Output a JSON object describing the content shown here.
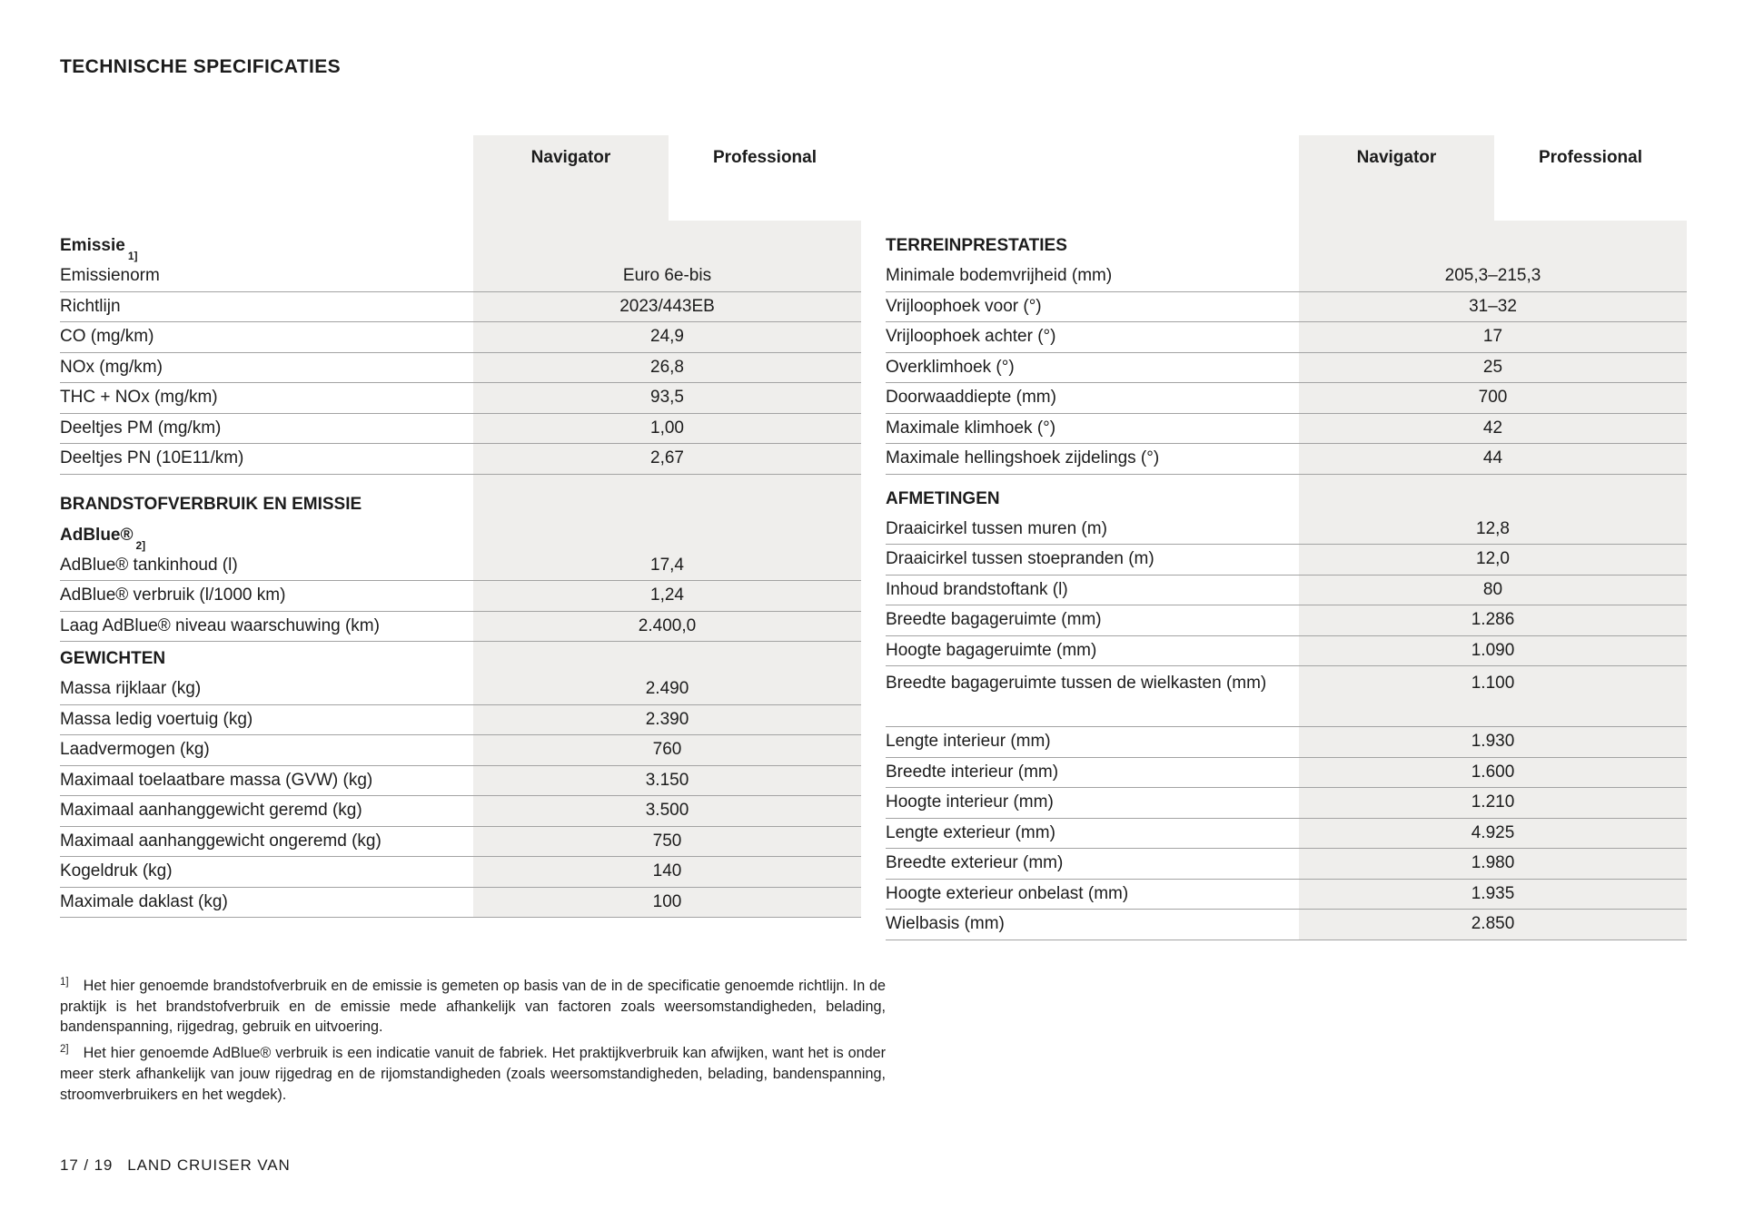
{
  "page": {
    "title": "TECHNISCHE SPECIFICATIES",
    "page_indicator": "17 / 19",
    "model_name": "LAND CRUISER VAN"
  },
  "columns": {
    "navigator": "Navigator",
    "professional": "Professional"
  },
  "colors": {
    "band": "#efeeec",
    "rule": "#a3a3a3",
    "text": "#1c1c1c",
    "background": "#ffffff"
  },
  "left_table": {
    "sections": [
      {
        "heading": "Emissie",
        "heading_sup": "1]",
        "rows": [
          {
            "label": "Emissienorm",
            "value": "Euro 6e-bis"
          },
          {
            "label": "Richtlijn",
            "value": "2023/443EB"
          },
          {
            "label": "CO (mg/km)",
            "value": "24,9"
          },
          {
            "label": "NOx (mg/km)",
            "value": "26,8"
          },
          {
            "label": "THC + NOx (mg/km)",
            "value": "93,5"
          },
          {
            "label": "Deeltjes PM (mg/km)",
            "value": "1,00"
          },
          {
            "label": "Deeltjes PN (10E11/km)",
            "value": "2,67"
          }
        ]
      },
      {
        "heading": "BRANDSTOFVERBRUIK EN EMISSIE",
        "rows": []
      },
      {
        "heading": "AdBlue®",
        "heading_sup": "2]",
        "rows": [
          {
            "label": "AdBlue® tankinhoud (l)",
            "value": "17,4"
          },
          {
            "label": "AdBlue® verbruik (l/1000 km)",
            "value": "1,24"
          },
          {
            "label": "Laag AdBlue® niveau waarschuwing (km)",
            "value": "2.400,0"
          }
        ]
      },
      {
        "heading": "GEWICHTEN",
        "rows": [
          {
            "label": "Massa rijklaar (kg)",
            "value": "2.490"
          },
          {
            "label": "Massa ledig voertuig (kg)",
            "value": "2.390"
          },
          {
            "label": "Laadvermogen (kg)",
            "value": "760"
          },
          {
            "label": "Maximaal toelaatbare massa (GVW) (kg)",
            "value": "3.150"
          },
          {
            "label": "Maximaal aanhanggewicht geremd (kg)",
            "value": "3.500"
          },
          {
            "label": "Maximaal aanhanggewicht ongeremd (kg)",
            "value": "750"
          },
          {
            "label": "Kogeldruk (kg)",
            "value": "140"
          },
          {
            "label": "Maximale daklast (kg)",
            "value": "100"
          }
        ]
      }
    ]
  },
  "right_table": {
    "sections": [
      {
        "heading": "TERREINPRESTATIES",
        "rows": [
          {
            "label": "Minimale bodemvrijheid (mm)",
            "value": "205,3–215,3"
          },
          {
            "label": "Vrijloophoek voor (°)",
            "value": "31–32"
          },
          {
            "label": "Vrijloophoek achter (°)",
            "value": "17"
          },
          {
            "label": "Overklimhoek (°)",
            "value": "25"
          },
          {
            "label": "Doorwaaddiepte (mm)",
            "value": "700"
          },
          {
            "label": "Maximale klimhoek (°)",
            "value": "42"
          },
          {
            "label": "Maximale hellingshoek zijdelings (°)",
            "value": "44"
          }
        ]
      },
      {
        "heading": "AFMETINGEN",
        "rows": [
          {
            "label": "Draaicirkel tussen muren (m)",
            "value": "12,8"
          },
          {
            "label": "Draaicirkel tussen stoepranden (m)",
            "value": "12,0"
          },
          {
            "label": "Inhoud brandstoftank (l)",
            "value": "80"
          },
          {
            "label": "Breedte bagageruimte (mm)",
            "value": "1.286"
          },
          {
            "label": "Hoogte bagageruimte (mm)",
            "value": "1.090"
          },
          {
            "label": "Breedte bagageruimte tussen de wielkasten (mm)",
            "value": "1.100"
          },
          {
            "label": "Lengte interieur (mm)",
            "value": "1.930"
          },
          {
            "label": "Breedte interieur (mm)",
            "value": "1.600"
          },
          {
            "label": "Hoogte interieur (mm)",
            "value": "1.210"
          },
          {
            "label": "Lengte exterieur (mm)",
            "value": "4.925"
          },
          {
            "label": "Breedte exterieur (mm)",
            "value": "1.980"
          },
          {
            "label": "Hoogte exterieur onbelast (mm)",
            "value": "1.935"
          },
          {
            "label": "Wielbasis (mm)",
            "value": "2.850"
          }
        ]
      }
    ]
  },
  "footnotes": [
    {
      "sup": "1]",
      "text": "Het hier genoemde brandstofverbruik en de emissie is gemeten op basis van de in de specificatie genoemde richtlijn. In de praktijk is het brandstofverbruik en de emissie mede afhankelijk van factoren zoals weersomstandigheden, belading, bandenspanning, rijgedrag, gebruik en uitvoering."
    },
    {
      "sup": "2]",
      "text": "Het hier genoemde AdBlue® verbruik is een indicatie vanuit de fabriek. Het praktijkverbruik kan afwijken, want het is onder meer sterk afhankelijk van jouw rijgedrag en de rijomstandigheden (zoals weersomstandigheden, belading, bandenspanning, stroomverbruikers en het wegdek)."
    }
  ]
}
